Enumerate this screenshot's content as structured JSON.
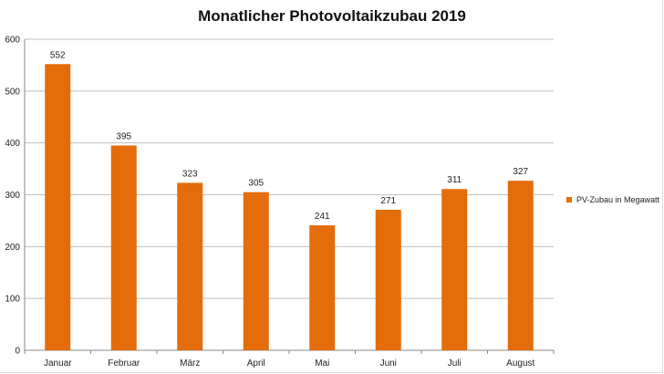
{
  "chart_data": {
    "type": "bar",
    "title": "Monatlicher Photovoltaikzubau 2019",
    "categories": [
      "Januar",
      "Februar",
      "März",
      "April",
      "Mai",
      "Juni",
      "Juli",
      "August"
    ],
    "series": [
      {
        "name": "PV-Zubau in Megawatt",
        "values": [
          552,
          395,
          323,
          305,
          241,
          271,
          311,
          327
        ],
        "color": "#e46c0a"
      }
    ],
    "data_labels": [
      "552",
      "395",
      "323",
      "305",
      "241",
      "271",
      "311",
      "327"
    ],
    "y_ticks": [
      "0",
      "100",
      "200",
      "300",
      "400",
      "500",
      "600"
    ],
    "ylim": [
      0,
      600
    ],
    "grid": true,
    "legend_position": "right",
    "xlabel": "",
    "ylabel": ""
  }
}
